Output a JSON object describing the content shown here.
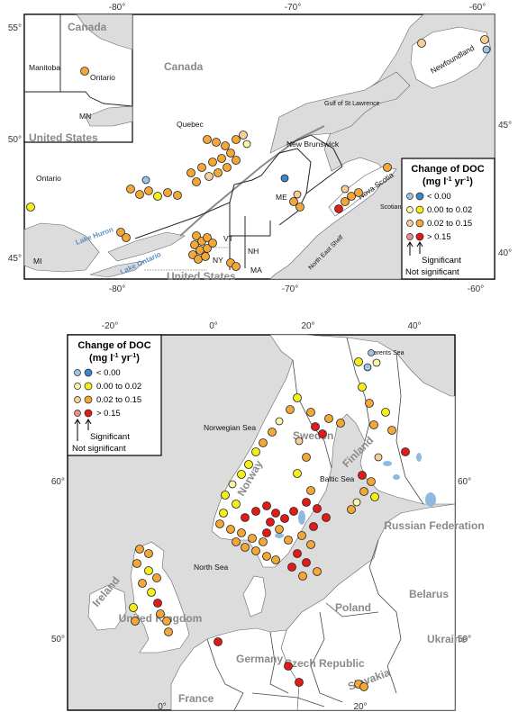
{
  "colors": {
    "neg_sig": "#3d86c6",
    "neg_ns": "#9cc3e4",
    "low_sig": "#f6ee1b",
    "low_ns": "#f8f6a8",
    "mid_sig": "#f3a738",
    "mid_ns": "#f6cf98",
    "high_sig": "#e11a1a",
    "high_ns": "#ef8a8a",
    "land": "#ffffff",
    "sea": "#dcdcdc",
    "lakes": "#8fb9df"
  },
  "legend": {
    "title_line1": "Change of DOC",
    "title_line2": "(mg l",
    "title_sup1": "-1",
    "title_mid": " yr",
    "title_sup2": "-1",
    "title_end": ")",
    "items": [
      "< 0.00",
      "0.00 to 0.02",
      "0.02 to 0.15",
      "> 0.15"
    ],
    "significant": "Significant",
    "not_significant": "Not significant"
  },
  "north_america": {
    "lon_ticks_top": [
      "-80°",
      "-70°",
      "-60°"
    ],
    "lon_ticks_bottom": [
      "-80°",
      "-70°",
      "-60°"
    ],
    "lat_ticks_left": [
      "55°",
      "50°",
      "45°"
    ],
    "lat_ticks_right": [
      "45°",
      "40°"
    ],
    "countries": [
      "Canada",
      "United States",
      "Canada",
      "United States"
    ],
    "regions": [
      "Manitoba",
      "Ontario",
      "MN",
      "Quebec",
      "Ontario",
      "New Brunswick",
      "ME",
      "Nova Scotia",
      "Newfoundland",
      "VT",
      "NH",
      "MA",
      "NY",
      "MI"
    ],
    "water": [
      "Lake Huron",
      "Lake Ontario"
    ],
    "sea_labels": [
      "Gulf of St Lawrence",
      "Scotian Shelf",
      "North East Shelf"
    ]
  },
  "europe": {
    "lon_ticks_top": [
      "-20°",
      "0°",
      "20°",
      "40°"
    ],
    "lon_ticks_bottom": [
      "0°",
      "20°"
    ],
    "lat_ticks_left": [
      "60°",
      "50°"
    ],
    "lat_ticks_right": [
      "60°",
      "50°"
    ],
    "countries": [
      "Sweden",
      "Norway",
      "Finland",
      "Russian Federation",
      "Belarus",
      "Poland",
      "Ukraine",
      "Germany",
      "France",
      "Ireland",
      "United Kingdom",
      "Czech Republic",
      "Slovakia"
    ],
    "sea_labels": [
      "Barents Sea",
      "Norwegian Sea",
      "North Sea",
      "Baltic Sea"
    ]
  }
}
